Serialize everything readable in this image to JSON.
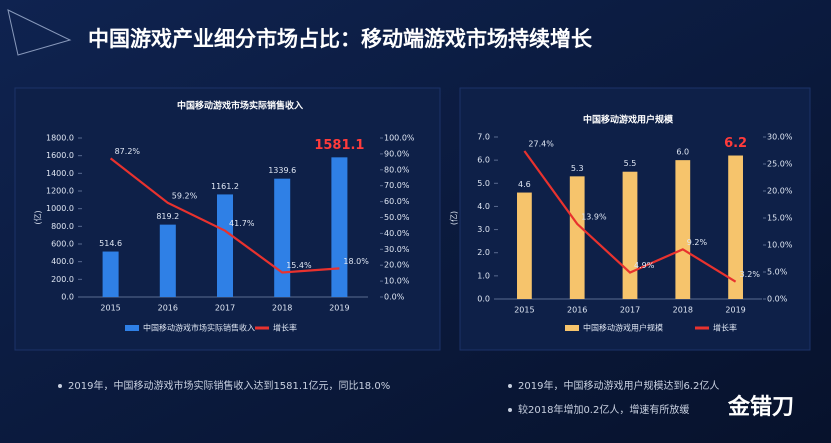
{
  "title": "中国游戏产业细分市场占比：移动端游戏市场持续增长",
  "chart_data": [
    {
      "type": "bar_line",
      "title": "中国移动游戏市场实际销售收入",
      "y_label": "(亿)",
      "categories": [
        "2015",
        "2016",
        "2017",
        "2018",
        "2019"
      ],
      "series": [
        {
          "name": "中国移动游戏市场实际销售收入",
          "color": "#2f80e6",
          "values": [
            514.6,
            819.2,
            1161.2,
            1339.6,
            1581.1
          ]
        },
        {
          "name": "增长率",
          "color": "#e8322e",
          "axis": "y2",
          "values": [
            87.2,
            59.2,
            41.7,
            15.4,
            18.0
          ],
          "value_labels": [
            "87.2%",
            "59.2%",
            "41.7%",
            "15.4%",
            "18.0%"
          ]
        }
      ],
      "ylim": [
        0,
        1800
      ],
      "yticks": [
        {
          "value": 0,
          "label": "0.0"
        },
        {
          "value": 200,
          "label": "200.0"
        },
        {
          "value": 400,
          "label": "400.0"
        },
        {
          "value": 600,
          "label": "600.0"
        },
        {
          "value": 800,
          "label": "800.0"
        },
        {
          "value": 1000,
          "label": "1000.0"
        },
        {
          "value": 1200,
          "label": "1200.0"
        },
        {
          "value": 1400,
          "label": "1400.0"
        },
        {
          "value": 1600,
          "label": "1600.0"
        },
        {
          "value": 1800,
          "label": "1800.0"
        }
      ],
      "y2lim": [
        0,
        100
      ],
      "y2ticks": [
        {
          "value": 0,
          "label": "0.0%"
        },
        {
          "value": 10,
          "label": "10.0%"
        },
        {
          "value": 20,
          "label": "20.0%"
        },
        {
          "value": 30,
          "label": "30.0%"
        },
        {
          "value": 40,
          "label": "40.0%"
        },
        {
          "value": 50,
          "label": "50.0%"
        },
        {
          "value": 60,
          "label": "60.0%"
        },
        {
          "value": 70,
          "label": "70.0%"
        },
        {
          "value": 80,
          "label": "80.0%"
        },
        {
          "value": 90,
          "label": "90.0%"
        },
        {
          "value": 100,
          "label": "100.0%"
        }
      ]
    },
    {
      "type": "bar_line",
      "title": "中国移动游戏用户规模",
      "y_label": "(亿)",
      "categories": [
        "2015",
        "2016",
        "2017",
        "2018",
        "2019"
      ],
      "series": [
        {
          "name": "中国移动游戏用户规模",
          "color": "#f6c46c",
          "values": [
            4.6,
            5.3,
            5.5,
            6.0,
            6.2
          ],
          "value_labels": [
            "4.6",
            "5.3",
            "5.5",
            "6.0",
            "6.2"
          ]
        },
        {
          "name": "增长率",
          "color": "#e8322e",
          "axis": "y2",
          "values": [
            27.4,
            13.9,
            4.9,
            9.2,
            3.2
          ],
          "value_labels": [
            "27.4%",
            "13.9%",
            "4.9%",
            "9.2%",
            "3.2%"
          ]
        }
      ],
      "ylim": [
        0,
        7
      ],
      "yticks": [
        {
          "value": 0,
          "label": "0.0"
        },
        {
          "value": 1,
          "label": "1.0"
        },
        {
          "value": 2,
          "label": "2.0"
        },
        {
          "value": 3,
          "label": "3.0"
        },
        {
          "value": 4,
          "label": "4.0"
        },
        {
          "value": 5,
          "label": "5.0"
        },
        {
          "value": 6,
          "label": "6.0"
        },
        {
          "value": 7,
          "label": "7.0"
        }
      ],
      "y2lim": [
        0,
        30
      ],
      "y2ticks": [
        {
          "value": 0,
          "label": "0.0%"
        },
        {
          "value": 5,
          "label": "5.0%"
        },
        {
          "value": 10,
          "label": "10.0%"
        },
        {
          "value": 15,
          "label": "15.0%"
        },
        {
          "value": 20,
          "label": "20.0%"
        },
        {
          "value": 25,
          "label": "25.0%"
        },
        {
          "value": 30,
          "label": "30.0%"
        }
      ]
    }
  ],
  "notes": [
    [
      "2019年，中国移动游戏市场实际销售收入达到1581.1亿元，同比18.0%"
    ],
    [
      "2019年，中国移动游戏用户规模达到6.2亿人",
      "较2018年增加0.2亿人，增速有所放缓"
    ]
  ],
  "watermark": "金错刀"
}
